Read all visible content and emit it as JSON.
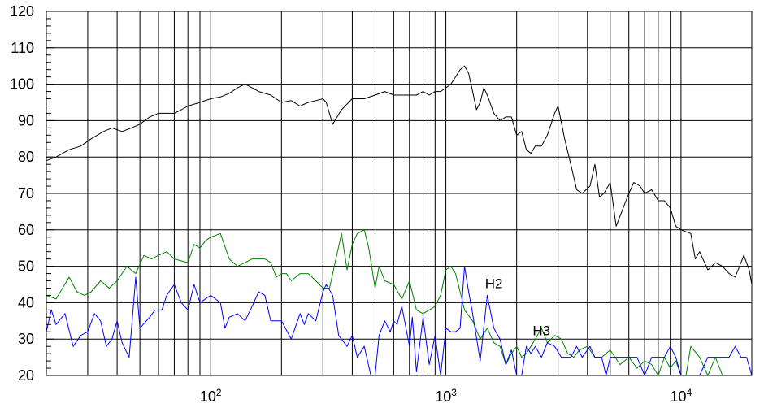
{
  "chart_data": {
    "type": "line",
    "title": "",
    "xlabel": "",
    "ylabel": "",
    "x_scale": "log",
    "xlim": [
      20,
      20000
    ],
    "ylim": [
      20,
      120
    ],
    "grid": true,
    "y_ticks": [
      "20",
      "30",
      "40",
      "50",
      "60",
      "70",
      "80",
      "90",
      "100",
      "110",
      "120"
    ],
    "x_ticks": [
      {
        "value": 100,
        "base": "10",
        "exp": "2"
      },
      {
        "value": 1000,
        "base": "10",
        "exp": "3"
      },
      {
        "value": 10000,
        "base": "10",
        "exp": "4"
      }
    ],
    "annotations": [
      {
        "text": "H2",
        "x": 1600,
        "y": 44
      },
      {
        "text": "H3",
        "x": 2550,
        "y": 31
      }
    ],
    "series": [
      {
        "color": "#000000",
        "points": [
          [
            20,
            79
          ],
          [
            22,
            80
          ],
          [
            25,
            82
          ],
          [
            28,
            83
          ],
          [
            31,
            85
          ],
          [
            35,
            87
          ],
          [
            38,
            88
          ],
          [
            42,
            87
          ],
          [
            46,
            88
          ],
          [
            50,
            89
          ],
          [
            55,
            91
          ],
          [
            60,
            92
          ],
          [
            65,
            92
          ],
          [
            70,
            92
          ],
          [
            75,
            93
          ],
          [
            80,
            94
          ],
          [
            90,
            95
          ],
          [
            100,
            96
          ],
          [
            110,
            96.5
          ],
          [
            120,
            97.5
          ],
          [
            130,
            99
          ],
          [
            140,
            100
          ],
          [
            150,
            99
          ],
          [
            160,
            98
          ],
          [
            180,
            97
          ],
          [
            200,
            95
          ],
          [
            220,
            95.5
          ],
          [
            240,
            94
          ],
          [
            260,
            95
          ],
          [
            280,
            95.5
          ],
          [
            300,
            96
          ],
          [
            310,
            95
          ],
          [
            330,
            89
          ],
          [
            360,
            93
          ],
          [
            400,
            96
          ],
          [
            450,
            96
          ],
          [
            500,
            97
          ],
          [
            550,
            98
          ],
          [
            600,
            97
          ],
          [
            650,
            97
          ],
          [
            700,
            97
          ],
          [
            750,
            97
          ],
          [
            800,
            98
          ],
          [
            850,
            97
          ],
          [
            900,
            98
          ],
          [
            950,
            98
          ],
          [
            1000,
            99
          ],
          [
            1050,
            100
          ],
          [
            1100,
            102
          ],
          [
            1150,
            104
          ],
          [
            1200,
            105
          ],
          [
            1250,
            103
          ],
          [
            1300,
            98
          ],
          [
            1350,
            93
          ],
          [
            1400,
            95
          ],
          [
            1450,
            99
          ],
          [
            1500,
            97
          ],
          [
            1600,
            92
          ],
          [
            1700,
            90
          ],
          [
            1800,
            91
          ],
          [
            1900,
            91
          ],
          [
            2000,
            86
          ],
          [
            2100,
            87
          ],
          [
            2200,
            82
          ],
          [
            2300,
            81
          ],
          [
            2400,
            83
          ],
          [
            2550,
            83
          ],
          [
            2700,
            86
          ],
          [
            2900,
            92
          ],
          [
            3000,
            94
          ],
          [
            3200,
            85
          ],
          [
            3400,
            78
          ],
          [
            3600,
            71
          ],
          [
            3800,
            70
          ],
          [
            4100,
            72
          ],
          [
            4300,
            78
          ],
          [
            4500,
            69
          ],
          [
            4700,
            70
          ],
          [
            5000,
            73
          ],
          [
            5300,
            61
          ],
          [
            5600,
            65
          ],
          [
            6000,
            70
          ],
          [
            6300,
            73
          ],
          [
            6700,
            72
          ],
          [
            7000,
            70
          ],
          [
            7500,
            71
          ],
          [
            8000,
            68
          ],
          [
            8500,
            68
          ],
          [
            9000,
            66
          ],
          [
            9500,
            61
          ],
          [
            10000,
            60
          ],
          [
            11000,
            59
          ],
          [
            11500,
            52
          ],
          [
            12000,
            54
          ],
          [
            13000,
            49
          ],
          [
            14000,
            51
          ],
          [
            15000,
            50
          ],
          [
            16000,
            48
          ],
          [
            17000,
            47
          ],
          [
            18500,
            53
          ],
          [
            19500,
            49
          ],
          [
            20000,
            45
          ]
        ]
      },
      {
        "color": "#008000",
        "points": [
          [
            20,
            42
          ],
          [
            22,
            41
          ],
          [
            25,
            47
          ],
          [
            27,
            43
          ],
          [
            29,
            42
          ],
          [
            31,
            43
          ],
          [
            34,
            46
          ],
          [
            37,
            44
          ],
          [
            40,
            46
          ],
          [
            44,
            50
          ],
          [
            48,
            48
          ],
          [
            52,
            53
          ],
          [
            56,
            52
          ],
          [
            60,
            53
          ],
          [
            65,
            54
          ],
          [
            70,
            52
          ],
          [
            80,
            51
          ],
          [
            85,
            56
          ],
          [
            90,
            55
          ],
          [
            95,
            57
          ],
          [
            100,
            58
          ],
          [
            110,
            59
          ],
          [
            120,
            52
          ],
          [
            130,
            50
          ],
          [
            140,
            51
          ],
          [
            150,
            52
          ],
          [
            160,
            52
          ],
          [
            170,
            52
          ],
          [
            180,
            51
          ],
          [
            190,
            47
          ],
          [
            200,
            48
          ],
          [
            210,
            48
          ],
          [
            220,
            46
          ],
          [
            240,
            48
          ],
          [
            260,
            48
          ],
          [
            280,
            46
          ],
          [
            300,
            44
          ],
          [
            320,
            44
          ],
          [
            360,
            59
          ],
          [
            380,
            49
          ],
          [
            400,
            56
          ],
          [
            420,
            59
          ],
          [
            450,
            60
          ],
          [
            470,
            55
          ],
          [
            500,
            44
          ],
          [
            520,
            50
          ],
          [
            550,
            46
          ],
          [
            600,
            45
          ],
          [
            650,
            41
          ],
          [
            700,
            46
          ],
          [
            750,
            38
          ],
          [
            800,
            37
          ],
          [
            850,
            38
          ],
          [
            900,
            39
          ],
          [
            950,
            42
          ],
          [
            1000,
            49
          ],
          [
            1050,
            50
          ],
          [
            1100,
            48
          ],
          [
            1150,
            43
          ],
          [
            1200,
            38
          ],
          [
            1300,
            35
          ],
          [
            1400,
            30
          ],
          [
            1500,
            33
          ],
          [
            1600,
            29
          ],
          [
            1700,
            28
          ],
          [
            1800,
            23
          ],
          [
            1900,
            26
          ],
          [
            2000,
            28
          ],
          [
            2100,
            25
          ],
          [
            2200,
            26
          ],
          [
            2300,
            28
          ],
          [
            2400,
            30
          ],
          [
            2550,
            33
          ],
          [
            2700,
            29
          ],
          [
            2900,
            31
          ],
          [
            3100,
            30
          ],
          [
            3300,
            26
          ],
          [
            3500,
            25
          ],
          [
            3700,
            27
          ],
          [
            4000,
            28
          ],
          [
            4300,
            25
          ],
          [
            4600,
            25
          ],
          [
            5000,
            27
          ],
          [
            5500,
            23
          ],
          [
            6000,
            25
          ],
          [
            6500,
            22
          ],
          [
            7000,
            24
          ],
          [
            7500,
            23
          ],
          [
            8000,
            20
          ],
          [
            8500,
            25
          ],
          [
            9000,
            22
          ],
          [
            9500,
            24
          ],
          [
            10000,
            20
          ],
          [
            10500,
            20
          ],
          [
            11000,
            28
          ],
          [
            12000,
            25
          ],
          [
            13000,
            20
          ],
          [
            14000,
            25
          ],
          [
            15000,
            20
          ],
          [
            17000,
            20
          ],
          [
            20000,
            20
          ]
        ]
      },
      {
        "color": "#0000ff",
        "points": [
          [
            20,
            32
          ],
          [
            21,
            38
          ],
          [
            22,
            34
          ],
          [
            24,
            37
          ],
          [
            26,
            28
          ],
          [
            28,
            31
          ],
          [
            30,
            32
          ],
          [
            32,
            37
          ],
          [
            34,
            35
          ],
          [
            36,
            28
          ],
          [
            38,
            30
          ],
          [
            40,
            35
          ],
          [
            42,
            29
          ],
          [
            45,
            25
          ],
          [
            48,
            47
          ],
          [
            50,
            33
          ],
          [
            55,
            36
          ],
          [
            58,
            38
          ],
          [
            62,
            38
          ],
          [
            65,
            42
          ],
          [
            70,
            45
          ],
          [
            75,
            40
          ],
          [
            80,
            38
          ],
          [
            85,
            45
          ],
          [
            90,
            40
          ],
          [
            100,
            42
          ],
          [
            110,
            40
          ],
          [
            115,
            33
          ],
          [
            120,
            36
          ],
          [
            130,
            37
          ],
          [
            140,
            35
          ],
          [
            150,
            39
          ],
          [
            160,
            43
          ],
          [
            170,
            42
          ],
          [
            180,
            35
          ],
          [
            190,
            35
          ],
          [
            200,
            35
          ],
          [
            220,
            30
          ],
          [
            240,
            37
          ],
          [
            250,
            34
          ],
          [
            260,
            37
          ],
          [
            280,
            35
          ],
          [
            300,
            43
          ],
          [
            310,
            45
          ],
          [
            330,
            42
          ],
          [
            350,
            31
          ],
          [
            380,
            28
          ],
          [
            400,
            31
          ],
          [
            420,
            25
          ],
          [
            450,
            28
          ],
          [
            480,
            20
          ],
          [
            500,
            20
          ],
          [
            520,
            31
          ],
          [
            550,
            35
          ],
          [
            580,
            32
          ],
          [
            600,
            35
          ],
          [
            620,
            34
          ],
          [
            650,
            39
          ],
          [
            700,
            28
          ],
          [
            720,
            36
          ],
          [
            750,
            21
          ],
          [
            800,
            36
          ],
          [
            850,
            23
          ],
          [
            900,
            31
          ],
          [
            950,
            20
          ],
          [
            1000,
            33
          ],
          [
            1050,
            32
          ],
          [
            1100,
            32
          ],
          [
            1150,
            33
          ],
          [
            1200,
            50
          ],
          [
            1250,
            43
          ],
          [
            1300,
            37
          ],
          [
            1400,
            24
          ],
          [
            1500,
            42
          ],
          [
            1600,
            33
          ],
          [
            1700,
            30
          ],
          [
            1800,
            23
          ],
          [
            1900,
            27
          ],
          [
            2000,
            20
          ],
          [
            2100,
            20
          ],
          [
            2200,
            28
          ],
          [
            2300,
            26
          ],
          [
            2400,
            28
          ],
          [
            2550,
            25
          ],
          [
            2700,
            29
          ],
          [
            2900,
            28
          ],
          [
            3100,
            25
          ],
          [
            3400,
            25
          ],
          [
            3600,
            28
          ],
          [
            3800,
            25
          ],
          [
            4100,
            28
          ],
          [
            4300,
            25
          ],
          [
            4600,
            25
          ],
          [
            4800,
            20
          ],
          [
            5000,
            25
          ],
          [
            5500,
            25
          ],
          [
            6000,
            25
          ],
          [
            6500,
            25
          ],
          [
            7000,
            20
          ],
          [
            7500,
            25
          ],
          [
            8000,
            25
          ],
          [
            8500,
            25
          ],
          [
            9000,
            28
          ],
          [
            9500,
            25
          ],
          [
            10000,
            20
          ],
          [
            12000,
            20
          ],
          [
            13000,
            25
          ],
          [
            14000,
            25
          ],
          [
            15000,
            25
          ],
          [
            16000,
            25
          ],
          [
            17000,
            28
          ],
          [
            18000,
            25
          ],
          [
            19000,
            25
          ],
          [
            20000,
            20
          ]
        ]
      }
    ]
  }
}
